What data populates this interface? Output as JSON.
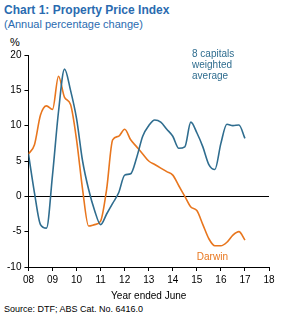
{
  "chart_data": {
    "type": "line",
    "title": "Chart 1: Property Price Index",
    "subtitle": "(Annual percentage change)",
    "ylabel": "%",
    "xlabel": "Year ended June",
    "source": "Source: DTF; ABS Cat. No. 6416.0",
    "x": [
      2008,
      2008.25,
      2008.5,
      2008.75,
      2009,
      2009.25,
      2009.5,
      2009.75,
      2010,
      2010.25,
      2010.5,
      2010.75,
      2011,
      2011.25,
      2011.5,
      2011.75,
      2012,
      2012.25,
      2012.5,
      2012.75,
      2013,
      2013.25,
      2013.5,
      2013.75,
      2014,
      2014.25,
      2014.5,
      2014.75,
      2015,
      2015.25,
      2015.5,
      2015.75,
      2016,
      2016.25,
      2016.5,
      2016.75,
      2017
    ],
    "series": [
      {
        "name": "8 capitals weighted average",
        "color": "#2f6d8f",
        "values": [
          6,
          0.5,
          -4,
          -4.5,
          3,
          12,
          18,
          15,
          11,
          5,
          1,
          -2,
          -4,
          -2.5,
          -1,
          0.5,
          3,
          3.2,
          5.5,
          8.5,
          10,
          10.8,
          10.5,
          9.5,
          8.5,
          6.8,
          7,
          10.5,
          9,
          7,
          4.5,
          3.8,
          7.5,
          10.2,
          10,
          10.1,
          8.2
        ]
      },
      {
        "name": "Darwin",
        "color": "#e8761e",
        "values": [
          6,
          7.3,
          11.5,
          12.8,
          12.3,
          17,
          14,
          13,
          8,
          1,
          -4.2,
          -4,
          -3.5,
          1,
          8,
          8.5,
          9.5,
          8,
          7,
          6,
          5,
          4.5,
          4,
          3.5,
          3,
          1.5,
          0,
          -1.5,
          -2,
          -4,
          -6,
          -7,
          -7,
          -6.5,
          -5.5,
          -5,
          -6.2
        ]
      }
    ],
    "xlim": [
      2008,
      2018
    ],
    "xticks": [
      {
        "value": 2008,
        "label": "08"
      },
      {
        "value": 2009,
        "label": "09"
      },
      {
        "value": 2010,
        "label": "10"
      },
      {
        "value": 2011,
        "label": "11"
      },
      {
        "value": 2012,
        "label": "12"
      },
      {
        "value": 2013,
        "label": "13"
      },
      {
        "value": 2014,
        "label": "14"
      },
      {
        "value": 2015,
        "label": "15"
      },
      {
        "value": 2016,
        "label": "16"
      },
      {
        "value": 2017,
        "label": "17"
      },
      {
        "value": 2018,
        "label": "18"
      }
    ],
    "ylim": [
      -10,
      20
    ],
    "yticks": [
      -10,
      -5,
      0,
      5,
      10,
      15,
      20
    ],
    "grid": false
  }
}
